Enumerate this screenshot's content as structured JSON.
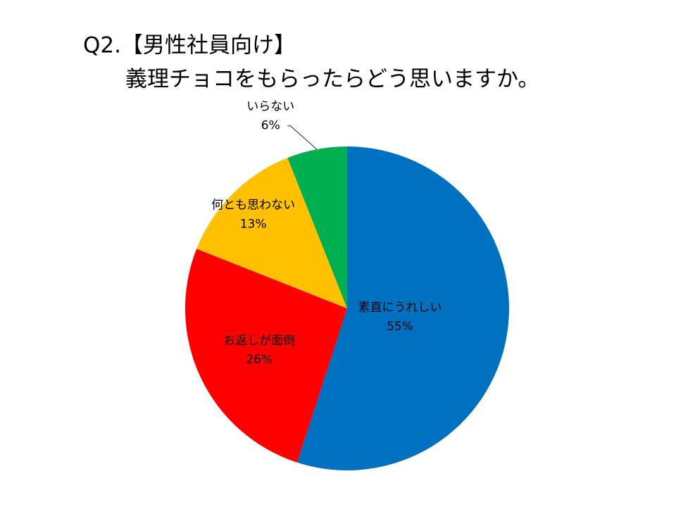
{
  "chart_data": {
    "type": "pie",
    "title": [
      "Q2.【男性社員向け】",
      "義理チョコをもらったらどう思いますか。"
    ],
    "categories": [
      "素直にうれしい",
      "お返しが面倒",
      "何とも思わない",
      "いらない"
    ],
    "values": [
      55,
      26,
      13,
      6
    ],
    "value_labels": [
      "55%",
      "26%",
      "13%",
      "6%"
    ],
    "colors": [
      "#0070C0",
      "#FF0000",
      "#FFC000",
      "#00B050"
    ]
  }
}
